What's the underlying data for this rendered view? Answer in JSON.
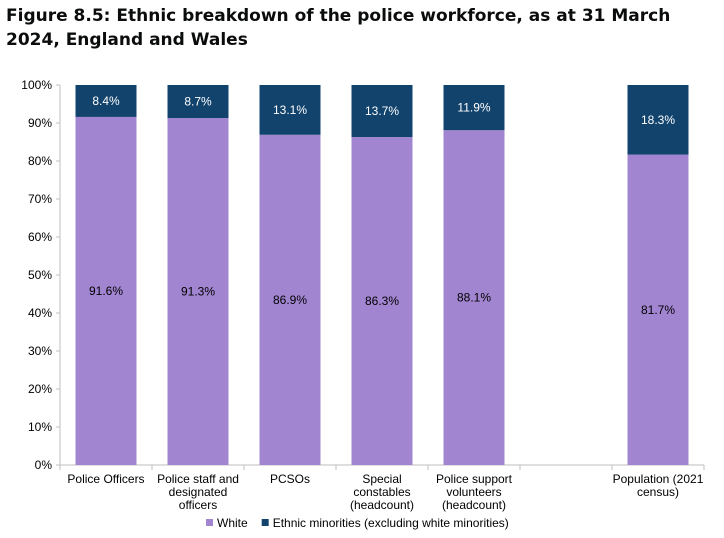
{
  "title": "Figure 8.5: Ethnic breakdown of the police workforce, as at 31 March 2024, England and Wales",
  "chart_data": {
    "type": "bar",
    "stacked": true,
    "percent": true,
    "categories": [
      [
        "Police Officers"
      ],
      [
        "Police staff and",
        "designated",
        "officers"
      ],
      [
        "PCSOs"
      ],
      [
        "Special",
        "constables",
        "(headcount)"
      ],
      [
        "Police support",
        "volunteers",
        "(headcount)"
      ],
      [
        ""
      ],
      [
        "Population (2021",
        "census)"
      ]
    ],
    "series": [
      {
        "name": "White",
        "color": "#a285d1",
        "values": [
          91.6,
          91.3,
          86.9,
          86.3,
          88.1,
          null,
          81.7
        ],
        "labels": [
          "91.6%",
          "91.3%",
          "86.9%",
          "86.3%",
          "88.1%",
          "",
          "81.7%"
        ]
      },
      {
        "name": "Ethnic minorities (excluding white minorities)",
        "color": "#12436d",
        "values": [
          8.4,
          8.7,
          13.1,
          13.7,
          11.9,
          null,
          18.3
        ],
        "labels": [
          "8.4%",
          "8.7%",
          "13.1%",
          "13.7%",
          "11.9%",
          "",
          "18.3%"
        ]
      }
    ],
    "ylim": [
      0,
      100
    ],
    "yticks": [
      "0%",
      "10%",
      "20%",
      "30%",
      "40%",
      "50%",
      "60%",
      "70%",
      "80%",
      "90%",
      "100%"
    ],
    "legend_position": "bottom",
    "grid": false
  }
}
